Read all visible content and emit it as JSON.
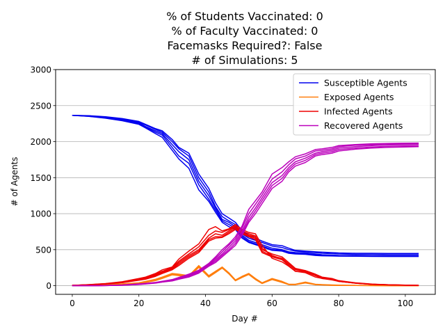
{
  "chart_data": {
    "type": "line",
    "title_lines": [
      "% of Students Vaccinated: 0",
      "% of Faculty Vaccinated: 0",
      "Facemasks Required?: False",
      "# of Simulations: 5"
    ],
    "xlabel": "Day #",
    "ylabel": "# of Agents",
    "xlim": [
      -5,
      109
    ],
    "ylim": [
      -120,
      3000
    ],
    "xticks": [
      0,
      20,
      40,
      60,
      80,
      100
    ],
    "yticks": [
      0,
      500,
      1000,
      1500,
      2000,
      2500,
      3000
    ],
    "grid": "y",
    "legend_position": "upper right",
    "x": [
      0,
      5,
      10,
      15,
      20,
      22,
      25,
      27,
      30,
      32,
      35,
      38,
      41,
      43,
      45,
      47,
      49,
      51,
      53,
      55,
      57,
      60,
      63,
      65,
      67,
      70,
      73,
      75,
      78,
      80,
      85,
      90,
      95,
      100,
      104
    ],
    "series": [
      {
        "name": "Susceptible Agents",
        "color": "#0000ee",
        "runs": [
          [
            2365,
            2360,
            2345,
            2320,
            2280,
            2240,
            2180,
            2150,
            2030,
            1920,
            1840,
            1550,
            1350,
            1150,
            1000,
            940,
            880,
            760,
            700,
            660,
            620,
            570,
            555,
            520,
            490,
            480,
            470,
            465,
            460,
            455,
            450,
            450,
            448,
            448,
            448
          ],
          [
            2365,
            2358,
            2340,
            2310,
            2270,
            2230,
            2170,
            2130,
            2000,
            1900,
            1800,
            1500,
            1300,
            1100,
            960,
            900,
            850,
            720,
            660,
            630,
            600,
            550,
            530,
            500,
            480,
            470,
            460,
            450,
            445,
            440,
            435,
            435,
            432,
            432,
            432
          ],
          [
            2365,
            2355,
            2335,
            2300,
            2260,
            2210,
            2150,
            2110,
            1960,
            1860,
            1750,
            1450,
            1250,
            1080,
            920,
            880,
            820,
            700,
            630,
            600,
            570,
            520,
            500,
            470,
            460,
            455,
            440,
            430,
            425,
            420,
            418,
            416,
            415,
            415,
            415
          ],
          [
            2365,
            2352,
            2330,
            2295,
            2250,
            2200,
            2130,
            2090,
            1920,
            1800,
            1700,
            1400,
            1200,
            1050,
            900,
            850,
            800,
            680,
            610,
            580,
            550,
            500,
            490,
            460,
            450,
            445,
            430,
            420,
            418,
            415,
            412,
            410,
            410,
            410,
            410
          ],
          [
            2365,
            2350,
            2325,
            2290,
            2240,
            2190,
            2110,
            2060,
            1880,
            1760,
            1630,
            1330,
            1170,
            1020,
            880,
            820,
            780,
            660,
            600,
            570,
            540,
            490,
            480,
            450,
            440,
            435,
            420,
            415,
            412,
            410,
            408,
            406,
            405,
            405,
            405
          ]
        ]
      },
      {
        "name": "Exposed Agents",
        "color": "#ff7f0e",
        "runs": [
          [
            5,
            8,
            15,
            25,
            40,
            60,
            90,
            120,
            170,
            160,
            140,
            280,
            140,
            200,
            260,
            180,
            80,
            130,
            170,
            100,
            40,
            100,
            60,
            20,
            20,
            50,
            20,
            15,
            10,
            8,
            5,
            3,
            2,
            1,
            1
          ],
          [
            5,
            7,
            14,
            24,
            38,
            56,
            85,
            115,
            165,
            155,
            135,
            270,
            135,
            195,
            255,
            175,
            75,
            125,
            165,
            95,
            38,
            95,
            55,
            18,
            18,
            45,
            18,
            13,
            8,
            6,
            4,
            3,
            2,
            1,
            1
          ],
          [
            5,
            6,
            12,
            22,
            35,
            52,
            80,
            110,
            160,
            150,
            130,
            265,
            130,
            190,
            250,
            170,
            72,
            120,
            160,
            90,
            35,
            90,
            50,
            16,
            16,
            42,
            16,
            12,
            7,
            5,
            4,
            2,
            1,
            1,
            1
          ],
          [
            5,
            6,
            11,
            20,
            32,
            48,
            75,
            105,
            155,
            145,
            125,
            260,
            125,
            185,
            248,
            168,
            70,
            118,
            158,
            88,
            33,
            88,
            48,
            15,
            15,
            40,
            15,
            11,
            6,
            5,
            3,
            2,
            1,
            1,
            1
          ],
          [
            5,
            5,
            10,
            18,
            30,
            45,
            70,
            100,
            150,
            140,
            120,
            255,
            120,
            180,
            245,
            165,
            68,
            115,
            155,
            85,
            30,
            85,
            45,
            14,
            14,
            38,
            14,
            10,
            5,
            4,
            3,
            2,
            1,
            1,
            1
          ]
        ]
      },
      {
        "name": "Infected Agents",
        "color": "#ee0000",
        "runs": [
          [
            5,
            15,
            30,
            55,
            100,
            120,
            170,
            220,
            260,
            370,
            480,
            580,
            780,
            820,
            760,
            790,
            850,
            780,
            740,
            720,
            560,
            380,
            330,
            270,
            200,
            180,
            120,
            100,
            80,
            60,
            35,
            18,
            10,
            6,
            5
          ],
          [
            5,
            14,
            28,
            50,
            90,
            110,
            160,
            200,
            250,
            340,
            440,
            540,
            700,
            760,
            740,
            780,
            830,
            760,
            720,
            690,
            520,
            420,
            370,
            300,
            230,
            200,
            140,
            110,
            90,
            60,
            35,
            20,
            12,
            7,
            5
          ],
          [
            5,
            13,
            26,
            48,
            85,
            100,
            150,
            190,
            240,
            320,
            420,
            500,
            660,
            720,
            700,
            760,
            820,
            740,
            700,
            680,
            500,
            440,
            400,
            320,
            240,
            210,
            160,
            120,
            100,
            70,
            40,
            22,
            13,
            8,
            5
          ],
          [
            5,
            12,
            25,
            45,
            80,
            95,
            140,
            180,
            230,
            300,
            400,
            480,
            640,
            680,
            680,
            740,
            800,
            730,
            690,
            660,
            480,
            410,
            380,
            300,
            220,
            200,
            150,
            110,
            95,
            65,
            38,
            20,
            12,
            8,
            5
          ],
          [
            5,
            11,
            24,
            42,
            75,
            90,
            130,
            170,
            220,
            280,
            380,
            460,
            620,
            660,
            670,
            720,
            780,
            720,
            680,
            640,
            460,
            400,
            360,
            280,
            200,
            190,
            140,
            100,
            90,
            60,
            36,
            18,
            11,
            7,
            5
          ]
        ]
      },
      {
        "name": "Recovered Agents",
        "color": "#bb00bb",
        "runs": [
          [
            0,
            0,
            3,
            10,
            25,
            32,
            45,
            62,
            85,
            115,
            160,
            215,
            310,
            400,
            500,
            580,
            680,
            830,
            1060,
            1180,
            1300,
            1550,
            1640,
            1720,
            1790,
            1830,
            1890,
            1900,
            1920,
            1945,
            1960,
            1970,
            1975,
            1978,
            1980
          ],
          [
            0,
            0,
            3,
            9,
            22,
            30,
            42,
            58,
            80,
            110,
            150,
            205,
            300,
            380,
            470,
            560,
            650,
            800,
            1000,
            1130,
            1260,
            1480,
            1580,
            1680,
            1760,
            1800,
            1870,
            1880,
            1900,
            1930,
            1950,
            1960,
            1968,
            1970,
            1970
          ],
          [
            0,
            0,
            2,
            8,
            20,
            28,
            40,
            55,
            75,
            100,
            140,
            195,
            290,
            360,
            440,
            530,
            620,
            760,
            950,
            1080,
            1220,
            1430,
            1530,
            1640,
            1720,
            1770,
            1840,
            1860,
            1880,
            1910,
            1930,
            1945,
            1955,
            1958,
            1960
          ],
          [
            0,
            0,
            2,
            7,
            18,
            26,
            38,
            52,
            70,
            95,
            130,
            185,
            280,
            340,
            420,
            500,
            590,
            730,
            910,
            1040,
            1180,
            1390,
            1490,
            1610,
            1690,
            1740,
            1820,
            1840,
            1860,
            1890,
            1910,
            1925,
            1935,
            1940,
            1940
          ],
          [
            0,
            0,
            2,
            6,
            16,
            24,
            36,
            50,
            65,
            90,
            120,
            175,
            270,
            320,
            400,
            480,
            560,
            700,
            880,
            1000,
            1140,
            1350,
            1450,
            1580,
            1660,
            1710,
            1800,
            1820,
            1840,
            1870,
            1895,
            1910,
            1920,
            1925,
            1930
          ]
        ]
      }
    ]
  }
}
